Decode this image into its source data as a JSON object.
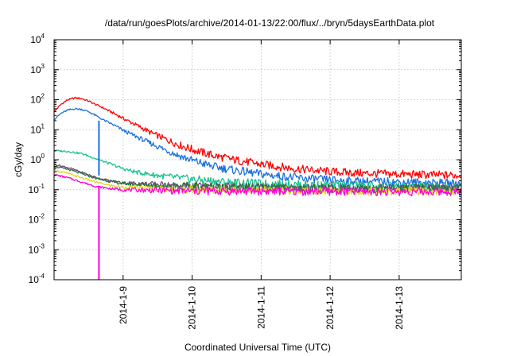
{
  "chart_data": {
    "type": "line",
    "title": "/data/run/goesPlots/archive/2014-01-13/22:00/flux/../bryn/5daysEarthData.plot",
    "xlabel": "Coordinated Universal Time (UTC)",
    "ylabel": "cGy/day",
    "xlim": [
      0,
      5.9
    ],
    "ylim": [
      0.0001,
      10000
    ],
    "y_scale": "log",
    "grid": true,
    "legend": "none",
    "x_ticks": [
      {
        "value": 1,
        "label": "2014-1-9"
      },
      {
        "value": 2,
        "label": "2014-1-10"
      },
      {
        "value": 3,
        "label": "2014-1-11"
      },
      {
        "value": 4,
        "label": "2014-1-12"
      },
      {
        "value": 5,
        "label": "2014-1-13"
      }
    ],
    "y_ticks": [
      {
        "value": 0.0001,
        "base": "10",
        "exp": "-4"
      },
      {
        "value": 0.001,
        "base": "10",
        "exp": "-3"
      },
      {
        "value": 0.01,
        "base": "10",
        "exp": "-2"
      },
      {
        "value": 0.1,
        "base": "10",
        "exp": "-1"
      },
      {
        "value": 1,
        "base": "10",
        "exp": "0"
      },
      {
        "value": 10,
        "base": "10",
        "exp": "1"
      },
      {
        "value": 100,
        "base": "10",
        "exp": "2"
      },
      {
        "value": 1000,
        "base": "10",
        "exp": "3"
      },
      {
        "value": 10000,
        "base": "10",
        "exp": "4"
      }
    ],
    "series": [
      {
        "color": "#ff0000",
        "x": [
          0,
          0.1,
          0.2,
          0.3,
          0.4,
          0.5,
          0.6,
          0.7,
          0.8,
          0.9,
          1.0,
          1.2,
          1.4,
          1.6,
          1.8,
          2.0,
          2.3,
          2.6,
          3.0,
          3.5,
          4.0,
          4.5,
          5.0,
          5.5,
          5.9
        ],
        "y": [
          40,
          70,
          100,
          115,
          110,
          90,
          70,
          55,
          42,
          32,
          24,
          14,
          8,
          5,
          3.2,
          2.2,
          1.4,
          1.0,
          0.7,
          0.5,
          0.4,
          0.35,
          0.33,
          0.31,
          0.3
        ]
      },
      {
        "color": "#1a6fe0",
        "x": [
          0,
          0.1,
          0.2,
          0.3,
          0.4,
          0.5,
          0.6,
          0.7,
          0.8,
          0.9,
          1.0,
          1.2,
          1.4,
          1.6,
          1.8,
          2.0,
          2.3,
          2.6,
          3.0,
          3.5,
          4.0,
          4.5,
          5.0,
          5.5,
          5.9
        ],
        "y": [
          22,
          35,
          45,
          50,
          48,
          40,
          30,
          22,
          17,
          13,
          9.5,
          5.8,
          3.5,
          2.2,
          1.4,
          0.95,
          0.6,
          0.45,
          0.33,
          0.25,
          0.21,
          0.19,
          0.18,
          0.17,
          0.16
        ]
      },
      {
        "color": "#1bbf8f",
        "x": [
          0,
          0.2,
          0.4,
          0.6,
          0.8,
          1.0,
          1.2,
          1.5,
          2.0,
          2.5,
          3.0,
          3.5,
          4.0,
          4.5,
          5.0,
          5.5,
          5.9
        ],
        "y": [
          2.0,
          1.9,
          1.6,
          1.1,
          0.75,
          0.5,
          0.38,
          0.3,
          0.22,
          0.18,
          0.16,
          0.15,
          0.14,
          0.14,
          0.13,
          0.13,
          0.13
        ]
      },
      {
        "color": "#7a3f7a",
        "x": [
          0,
          0.2,
          0.4,
          0.6,
          0.8,
          1.0,
          1.5,
          2.0,
          2.5,
          3.0,
          3.5,
          4.0,
          4.5,
          5.0,
          5.5,
          5.9
        ],
        "y": [
          0.7,
          0.55,
          0.38,
          0.26,
          0.2,
          0.17,
          0.15,
          0.13,
          0.12,
          0.12,
          0.11,
          0.11,
          0.11,
          0.11,
          0.11,
          0.11
        ]
      },
      {
        "color": "#1f7a3a",
        "x": [
          0,
          0.2,
          0.4,
          0.6,
          0.8,
          1.0,
          1.5,
          2.0,
          2.5,
          3.0,
          3.5,
          4.0,
          4.5,
          5.0,
          5.5,
          5.9
        ],
        "y": [
          0.6,
          0.48,
          0.34,
          0.24,
          0.19,
          0.16,
          0.14,
          0.13,
          0.12,
          0.12,
          0.11,
          0.11,
          0.11,
          0.11,
          0.11,
          0.11
        ]
      },
      {
        "color": "#e8d020",
        "x": [
          0,
          0.2,
          0.4,
          0.6,
          0.8,
          1.0,
          1.5,
          2.0,
          2.5,
          3.0,
          3.5,
          4.0,
          4.5,
          5.0,
          5.5,
          5.9
        ],
        "y": [
          0.45,
          0.35,
          0.25,
          0.18,
          0.14,
          0.12,
          0.11,
          0.1,
          0.1,
          0.095,
          0.095,
          0.09,
          0.09,
          0.09,
          0.09,
          0.09
        ]
      },
      {
        "color": "#ff00d8",
        "x": [
          0,
          0.2,
          0.4,
          0.6,
          0.8,
          1.0,
          1.5,
          2.0,
          2.5,
          3.0,
          3.5,
          4.0,
          4.5,
          5.0,
          5.5,
          5.9
        ],
        "y": [
          0.32,
          0.25,
          0.18,
          0.13,
          0.11,
          0.1,
          0.095,
          0.09,
          0.09,
          0.09,
          0.088,
          0.088,
          0.088,
          0.086,
          0.086,
          0.086
        ]
      }
    ],
    "spikes": [
      {
        "color": "#1a6fe0",
        "x": 0.65,
        "y_from": 0.3,
        "y_to": 20
      },
      {
        "color": "#ff00d8",
        "x": 0.65,
        "y_from": 0.0001,
        "y_to": 0.13
      }
    ]
  }
}
